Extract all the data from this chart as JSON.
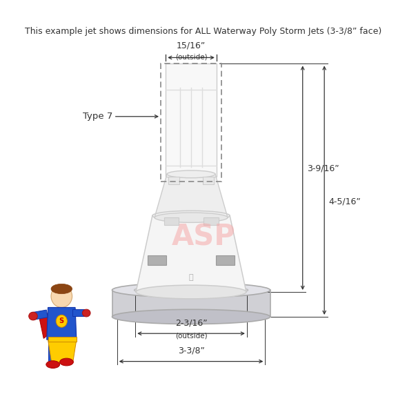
{
  "title": "This example jet shows dimensions for ALL Waterway Poly Storm Jets (3-3/8” face)",
  "title_fontsize": 9.0,
  "bg_color": "#ffffff",
  "dim_color": "#333333",
  "watermark_text": "ASP",
  "watermark_color": "#f5aaaa",
  "dim_top_label": "15/16”",
  "dim_top_sublabel": "(outside)",
  "dim_left_label": "Type 7",
  "dim_right1_label": "3-9/16”",
  "dim_right2_label": "4-5/16”",
  "dim_bottom1_label": "2-3/16”",
  "dim_bottom1_sublabel": "(outside)",
  "dim_bottom2_label": "3-3/8”",
  "line_color": "#333333"
}
